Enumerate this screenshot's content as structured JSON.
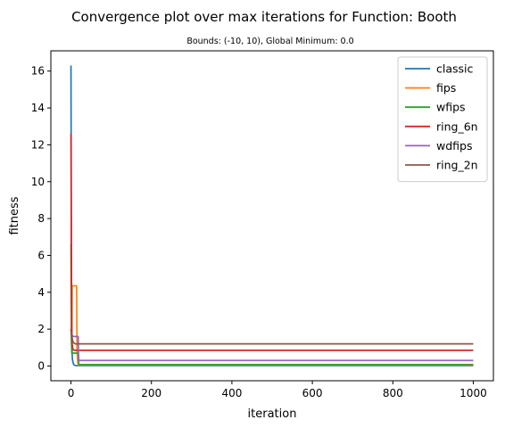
{
  "chart_data": {
    "type": "line",
    "title": "Convergence plot over max iterations for Function: Booth",
    "subtitle": "Bounds: (-10, 10), Global Minimum: 0.0",
    "xlabel": "iteration",
    "ylabel": "fitness",
    "xlim": [
      -50,
      1050
    ],
    "ylim": [
      -0.8,
      17.1
    ],
    "xticks": [
      0,
      200,
      400,
      600,
      800,
      1000
    ],
    "yticks": [
      0,
      2,
      4,
      6,
      8,
      10,
      12,
      14,
      16
    ],
    "grid": false,
    "legend_position": "top-right",
    "series": [
      {
        "name": "classic",
        "color": "#1f77b4",
        "x": [
          0,
          1,
          2,
          3,
          4,
          6,
          8,
          10,
          12,
          1000
        ],
        "y": [
          16.3,
          6.5,
          1.5,
          0.6,
          0.3,
          0.12,
          0.06,
          0.03,
          0.02,
          0.02
        ]
      },
      {
        "name": "fips",
        "color": "#ff7f0e",
        "x": [
          0,
          2,
          3,
          4,
          14,
          15,
          16,
          17,
          18,
          1000
        ],
        "y": [
          2.0,
          1.2,
          4.35,
          4.35,
          4.35,
          0.9,
          0.5,
          0.2,
          0.05,
          0.05
        ]
      },
      {
        "name": "wfips",
        "color": "#2ca02c",
        "x": [
          0,
          1,
          2,
          18,
          19,
          20,
          1000
        ],
        "y": [
          6.6,
          1.5,
          0.7,
          0.7,
          0.2,
          0.08,
          0.08
        ]
      },
      {
        "name": "ring_6n",
        "color": "#d62728",
        "x": [
          0,
          1,
          2,
          3,
          5,
          8,
          1000
        ],
        "y": [
          12.6,
          6.0,
          2.0,
          1.2,
          0.9,
          0.85,
          0.85
        ]
      },
      {
        "name": "wdfips",
        "color": "#9467bd",
        "x": [
          0,
          1,
          3,
          4,
          18,
          19,
          20,
          1000
        ],
        "y": [
          1.8,
          1.7,
          1.7,
          1.6,
          1.6,
          0.5,
          0.3,
          0.3
        ]
      },
      {
        "name": "ring_2n",
        "color": "#8c564b",
        "x": [
          0,
          1,
          3,
          5,
          10,
          1000
        ],
        "y": [
          2.0,
          1.8,
          1.5,
          1.3,
          1.2,
          1.2
        ]
      }
    ]
  }
}
